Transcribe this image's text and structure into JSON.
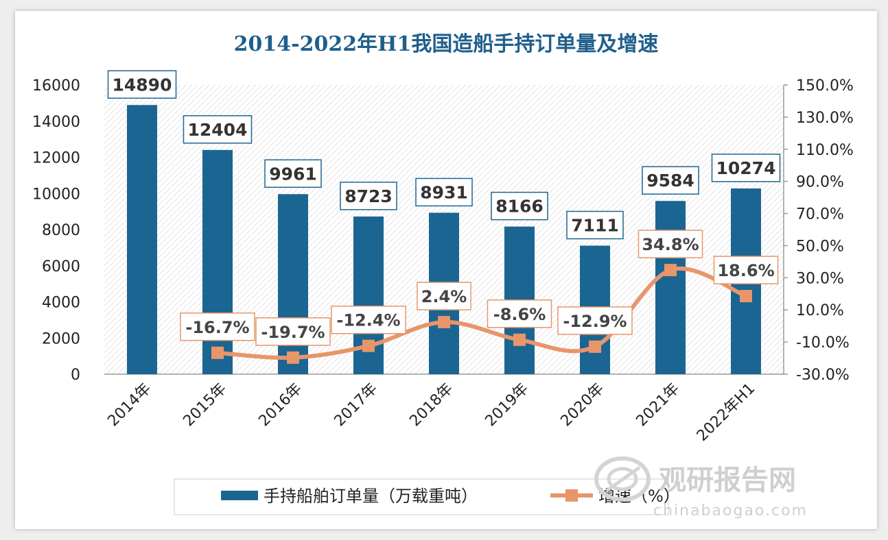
{
  "chart_data": {
    "type": "bar",
    "title": "2014-2022年H1我国造船手持订单量及增速",
    "categories": [
      "2014年",
      "2015年",
      "2016年",
      "2017年",
      "2018年",
      "2019年",
      "2020年",
      "2021年",
      "2022年H1"
    ],
    "series": [
      {
        "name": "手持船舶订单量（万载重吨）",
        "type": "bar",
        "axis": "left",
        "values": [
          14890,
          12404,
          9961,
          8723,
          8931,
          8166,
          7111,
          9584,
          10274
        ],
        "labels": [
          "14890",
          "12404",
          "9961",
          "8723",
          "8931",
          "8166",
          "7111",
          "9584",
          "10274"
        ],
        "color": "#1b6592"
      },
      {
        "name": "增速（%）",
        "type": "line",
        "axis": "right",
        "values": [
          null,
          -16.7,
          -19.7,
          -12.4,
          2.4,
          -8.6,
          -12.9,
          34.8,
          18.6
        ],
        "labels": [
          "",
          "-16.7%",
          "-19.7%",
          "-12.4%",
          "2.4%",
          "-8.6%",
          "-12.9%",
          "34.8%",
          "18.6%"
        ],
        "color": "#e8956a"
      }
    ],
    "y_left": {
      "ylim": [
        0,
        16000
      ],
      "ticks": [
        "0",
        "2000",
        "4000",
        "6000",
        "8000",
        "10000",
        "12000",
        "14000",
        "16000"
      ]
    },
    "y_right": {
      "ylim": [
        -30,
        150
      ],
      "ticks": [
        "-30.0%",
        "-10.0%",
        "10.0%",
        "30.0%",
        "50.0%",
        "70.0%",
        "90.0%",
        "110.0%",
        "130.0%",
        "150.0%"
      ]
    },
    "legend": {
      "position": "bottom"
    },
    "grid": false
  },
  "watermark": {
    "brand": "观研报告网",
    "site": "chinabaogao.com"
  }
}
